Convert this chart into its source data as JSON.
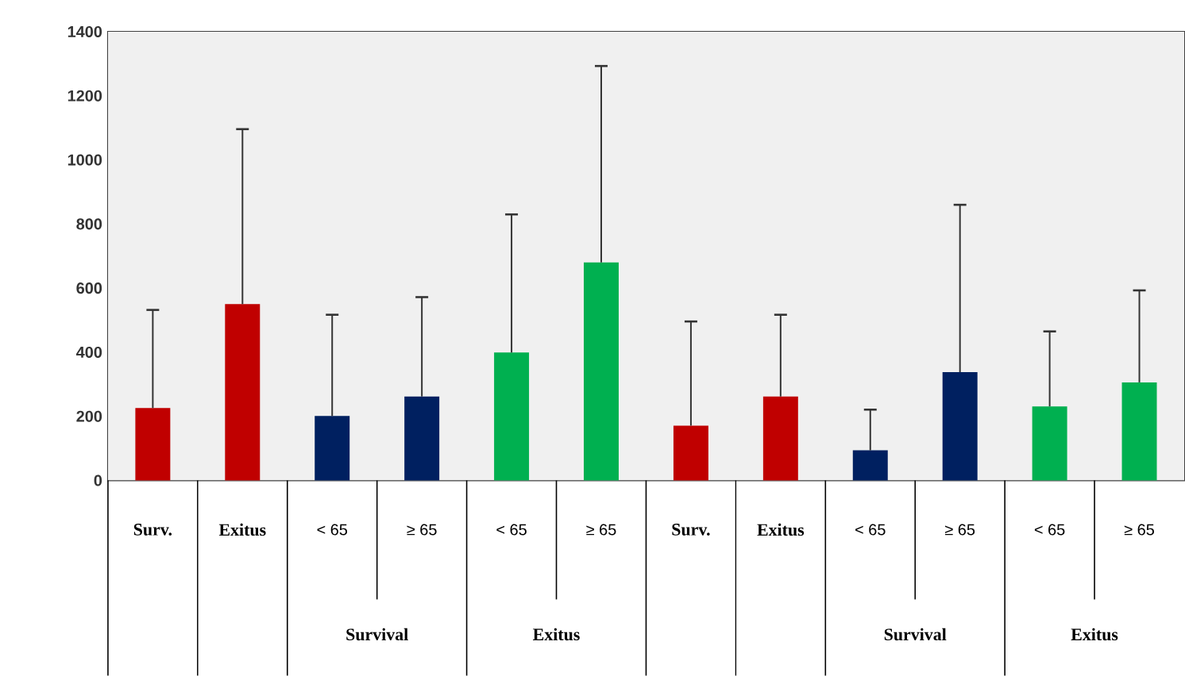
{
  "chart_data": {
    "type": "bar",
    "categories": [
      "Surv.",
      "Exitus",
      "< 65",
      "≥ 65",
      "< 65",
      "≥ 65",
      "Surv.",
      "Exitus",
      "< 65",
      "≥ 65",
      "< 65",
      "≥ 65"
    ],
    "values": [
      226,
      550,
      201,
      262,
      399,
      680,
      171,
      262,
      94,
      338,
      231,
      306
    ],
    "colors": [
      "#c00000",
      "#c00000",
      "#002060",
      "#002060",
      "#00b050",
      "#00b050",
      "#c00000",
      "#c00000",
      "#002060",
      "#002060",
      "#00b050",
      "#00b050"
    ],
    "errors": [
      [
        226,
        532
      ],
      [
        550,
        1096
      ],
      [
        201,
        517
      ],
      [
        262,
        572
      ],
      [
        399,
        830
      ],
      [
        680,
        1293
      ],
      [
        171,
        496
      ],
      [
        262,
        517
      ],
      [
        94,
        221
      ],
      [
        338,
        860
      ],
      [
        231,
        465
      ],
      [
        306,
        593
      ]
    ],
    "ylim": [
      0,
      1400
    ],
    "yticks": [
      0,
      200,
      400,
      600,
      800,
      1000,
      1200,
      1400
    ],
    "annotations": [
      "Survival",
      "Exitus",
      "Survival",
      "Exitus"
    ]
  }
}
